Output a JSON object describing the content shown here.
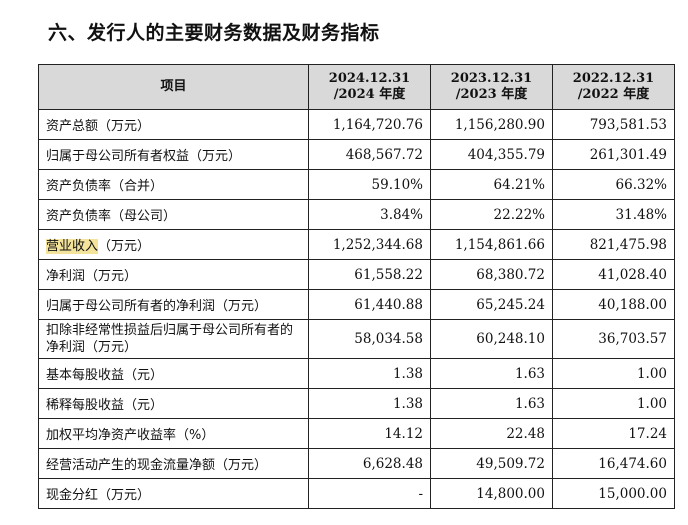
{
  "page": {
    "title": "六、发行人的主要财务数据及财务指标"
  },
  "table": {
    "headers": {
      "item": "项目",
      "y2024": [
        "2024.12.31",
        "/2024 年度"
      ],
      "y2023": [
        "2023.12.31",
        "/2023 年度"
      ],
      "y2022": [
        "2022.12.31",
        "/2022 年度"
      ]
    },
    "rows": [
      {
        "label": "资产总额（万元）",
        "v2024": "1,164,720.76",
        "v2023": "1,156,280.90",
        "v2022": "793,581.53"
      },
      {
        "label": "归属于母公司所有者权益（万元）",
        "v2024": "468,567.72",
        "v2023": "404,355.79",
        "v2022": "261,301.49"
      },
      {
        "label": "资产负债率（合并）",
        "v2024": "59.10%",
        "v2023": "64.21%",
        "v2022": "66.32%"
      },
      {
        "label": "资产负债率（母公司）",
        "v2024": "3.84%",
        "v2023": "22.22%",
        "v2022": "31.48%"
      },
      {
        "label_highlight": "营业收入",
        "label_rest": "（万元）",
        "v2024": "1,252,344.68",
        "v2023": "1,154,861.66",
        "v2022": "821,475.98"
      },
      {
        "label": "净利润（万元）",
        "v2024": "61,558.22",
        "v2023": "68,380.72",
        "v2022": "41,028.40"
      },
      {
        "label": "归属于母公司所有者的净利润（万元）",
        "v2024": "61,440.88",
        "v2023": "65,245.24",
        "v2022": "40,188.00"
      },
      {
        "label": "扣除非经常性损益后归属于母公司所有者的净利润（万元）",
        "v2024": "58,034.58",
        "v2023": "60,248.10",
        "v2022": "36,703.57"
      },
      {
        "label": "基本每股收益（元）",
        "v2024": "1.38",
        "v2023": "1.63",
        "v2022": "1.00"
      },
      {
        "label": "稀释每股收益（元）",
        "v2024": "1.38",
        "v2023": "1.63",
        "v2022": "1.00"
      },
      {
        "label": "加权平均净资产收益率（%）",
        "v2024": "14.12",
        "v2023": "22.48",
        "v2022": "17.24"
      },
      {
        "label": "经营活动产生的现金流量净额（万元）",
        "v2024": "6,628.48",
        "v2023": "49,509.72",
        "v2022": "16,474.60"
      },
      {
        "label": "现金分红（万元）",
        "v2024": "-",
        "v2023": "14,800.00",
        "v2022": "15,000.00"
      }
    ]
  }
}
